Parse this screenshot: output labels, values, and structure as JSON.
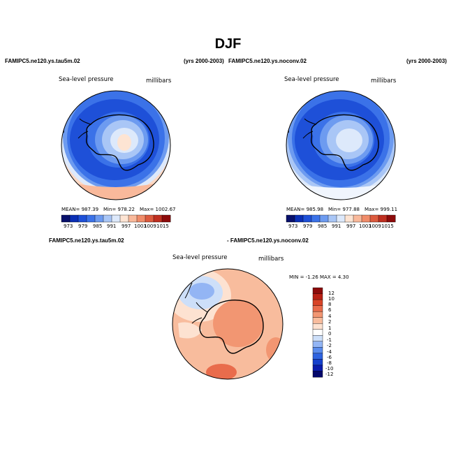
{
  "title": "DJF",
  "panel1": {
    "case_title": "FAMIPC5.ne120.ys.tau5m.02",
    "years": "(yrs 2000-2003)",
    "variable": "Sea-level pressure",
    "units": "millibars",
    "mean_text": "MEAN= 987.39",
    "min_text": "Min= 978.22",
    "max_text": "Max= 1002.67"
  },
  "panel2": {
    "case_title": "FAMIPC5.ne120.ys.noconv.02",
    "years": "(yrs 2000-2003)",
    "variable": "Sea-level pressure",
    "units": "millibars",
    "mean_text": "MEAN= 985.98",
    "min_text": "Min= 977.88",
    "max_text": "Max= 999.11"
  },
  "panel3": {
    "case_title_a": "FAMIPC5.ne120.ys.tau5m.02",
    "case_title_b": "- FAMIPC5.ne120.ys.noconv.02",
    "variable": "Sea-level pressure",
    "units": "millibars",
    "minmax_text": "MIN =   -1.26  MAX =    4.30"
  },
  "colors": {
    "abs_scale": [
      "#08106b",
      "#0a2fb5",
      "#1e50d8",
      "#3b72e8",
      "#6d9bf0",
      "#a9c6f6",
      "#dde9fb",
      "#fde4d3",
      "#f9b99b",
      "#f08c6a",
      "#dc5a3e",
      "#bf2f20",
      "#8c0b0b"
    ],
    "diff_scale": [
      "#04086b",
      "#0a1cac",
      "#1540cc",
      "#2e63e0",
      "#5a8ced",
      "#93b5f4",
      "#cddff9",
      "#ffffff",
      "#fde2d1",
      "#f8bc9d",
      "#f29672",
      "#e96c4c",
      "#d84428",
      "#b82014",
      "#8c0a0a"
    ]
  },
  "chart_data": [
    {
      "type": "heatmap",
      "title": "FAMIPC5.ne120.ys.tau5m.02 (yrs 2000-2003)",
      "variable": "Sea-level pressure",
      "units": "millibars",
      "projection": "south polar stereographic",
      "stats": {
        "mean": 987.39,
        "min": 978.22,
        "max": 1002.67
      },
      "colorbar": {
        "labels": [
          "973",
          "979",
          "985",
          "991",
          "997",
          "1003",
          "1009",
          "1015"
        ],
        "levels": [
          973,
          976,
          979,
          982,
          985,
          988,
          991,
          994,
          997,
          1000,
          1003,
          1006,
          1009,
          1012,
          1015
        ]
      }
    },
    {
      "type": "heatmap",
      "title": "FAMIPC5.ne120.ys.noconv.02 (yrs 2000-2003)",
      "variable": "Sea-level pressure",
      "units": "millibars",
      "projection": "south polar stereographic",
      "stats": {
        "mean": 985.98,
        "min": 977.88,
        "max": 999.11
      },
      "colorbar": {
        "labels": [
          "973",
          "979",
          "985",
          "991",
          "997",
          "1003",
          "1009",
          "1015"
        ],
        "levels": [
          973,
          976,
          979,
          982,
          985,
          988,
          991,
          994,
          997,
          1000,
          1003,
          1006,
          1009,
          1012,
          1015
        ]
      }
    },
    {
      "type": "heatmap",
      "title": "FAMIPC5.ne120.ys.tau5m.02 - FAMIPC5.ne120.ys.noconv.02",
      "variable": "Sea-level pressure",
      "units": "millibars",
      "projection": "south polar stereographic",
      "stats": {
        "min": -1.26,
        "max": 4.3
      },
      "colorbar": {
        "labels": [
          "12",
          "10",
          "8",
          "6",
          "4",
          "2",
          "1",
          "0",
          "-1",
          "-2",
          "-4",
          "-6",
          "-8",
          "-10",
          "-12"
        ]
      }
    }
  ]
}
